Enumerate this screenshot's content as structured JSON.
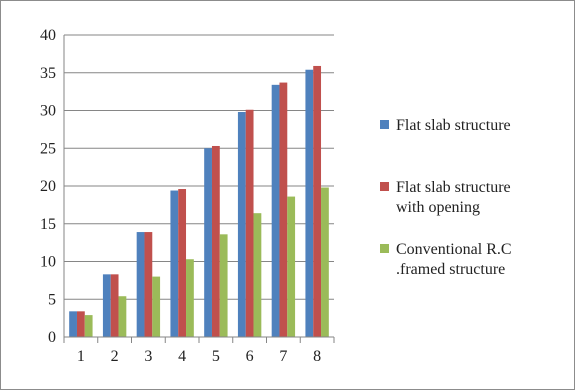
{
  "chart_data": {
    "type": "bar",
    "categories": [
      "1",
      "2",
      "3",
      "4",
      "5",
      "6",
      "7",
      "8"
    ],
    "series": [
      {
        "name": "Flat slab structure",
        "name_lines": [
          "Flat slab structure"
        ],
        "color": "#4F81BD",
        "values": [
          3.4,
          8.3,
          13.9,
          19.4,
          25.0,
          29.8,
          33.4,
          35.4
        ]
      },
      {
        "name": "Flat slab structure with opening",
        "name_lines": [
          "Flat slab structure",
          "with opening"
        ],
        "color": "#C0504D",
        "values": [
          3.4,
          8.3,
          13.9,
          19.6,
          25.3,
          30.1,
          33.7,
          35.9
        ]
      },
      {
        "name": "Conventional R.C .framed structure",
        "name_lines": [
          "Conventional R.C",
          ".framed structure"
        ],
        "color": "#9BBB59",
        "values": [
          2.9,
          5.4,
          8.0,
          10.3,
          13.6,
          16.4,
          18.6,
          19.8
        ]
      }
    ],
    "yticks": [
      "0",
      "5",
      "10",
      "15",
      "20",
      "25",
      "30",
      "35",
      "40"
    ],
    "ylim": [
      0,
      40
    ],
    "title": "",
    "xlabel": "",
    "ylabel": "",
    "grid": "horizontal",
    "legend_position": "right"
  }
}
